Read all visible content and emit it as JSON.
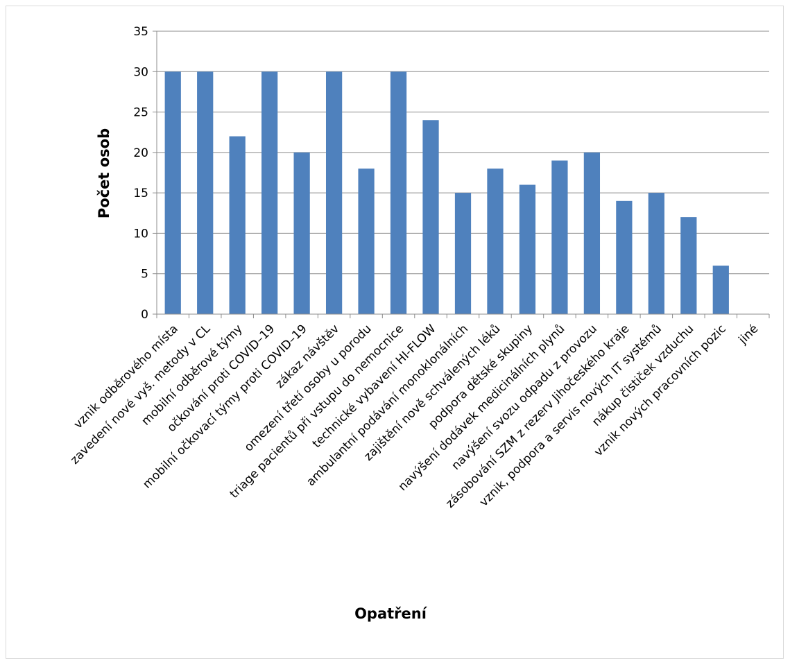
{
  "chart_data": {
    "type": "bar",
    "title": "",
    "xlabel": "Opatření",
    "ylabel": "Počet osob",
    "ylim": [
      0,
      35
    ],
    "yticks": [
      0,
      5,
      10,
      15,
      20,
      25,
      30,
      35
    ],
    "grid": true,
    "legend": "none",
    "bar_color": "#4f81bd",
    "categories": [
      "vznik odběrového místa",
      "zavedení nové vyš. metody v CL",
      "mobilní odběrové týmy",
      "očkování proti COVID–19",
      "mobilní očkovací týmy proti COVID–19",
      "zákaz návštěv",
      "omezení třetí osoby u porodu",
      "triage pacientů při vstupu do nemocnice",
      "technické vybavení HI-FLOW",
      "ambulantní podávání monoklonálních",
      "zajištění nově schválených léků",
      "podpora dětské skupiny",
      "navýšení dodávek medicinálních plynů",
      "navýšení svozu odpadu z provozu",
      "zásobování SZM z rezerv Jihočeského kraje",
      "vznik, podpora a servis nových IT systémů",
      "nákup čističek vzduchu",
      "vznik nových pracovních pozic",
      "jiné"
    ],
    "values": [
      30,
      30,
      22,
      30,
      20,
      30,
      18,
      30,
      24,
      15,
      18,
      16,
      19,
      20,
      14,
      15,
      12,
      6,
      0
    ]
  }
}
